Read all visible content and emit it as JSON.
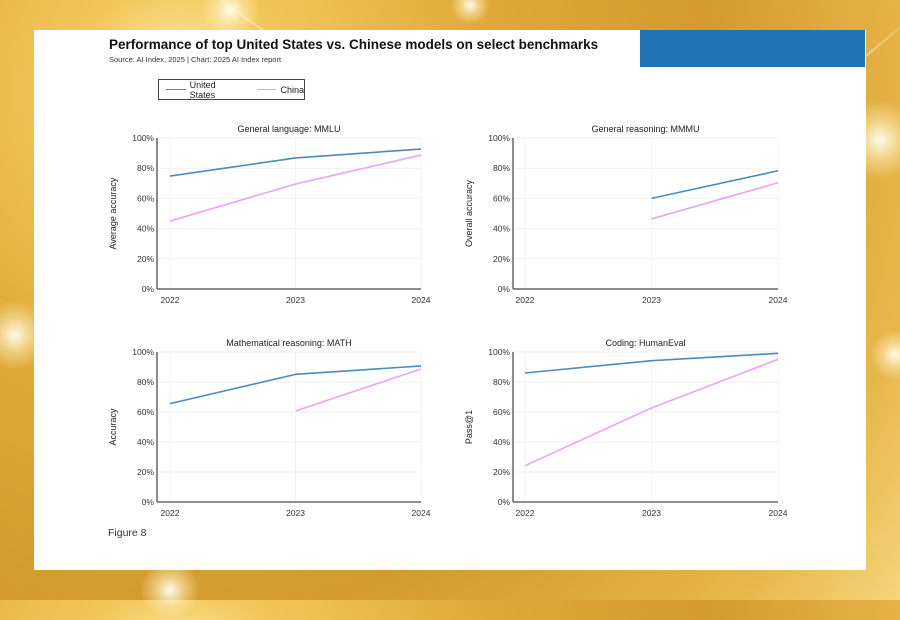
{
  "header": {
    "title": "Performance of top United States vs. Chinese models on select benchmarks",
    "source": "Source: AI Index, 2025 | Chart: 2025 AI Index report"
  },
  "legend": [
    {
      "name": "United States",
      "color": "#4a8bbf"
    },
    {
      "name": "China",
      "color": "#e9a6ef"
    }
  ],
  "footer": {
    "figure_label": "Figure 8"
  },
  "chart_data": [
    {
      "type": "line",
      "title": "General language: MMLU",
      "xlabel": "",
      "ylabel": "Average accuracy",
      "x": [
        "2022",
        "2023",
        "2024"
      ],
      "ylim": [
        0,
        100
      ],
      "yticks": [
        "0%",
        "20%",
        "40%",
        "60%",
        "80%",
        "100%"
      ],
      "grid": true,
      "series": [
        {
          "name": "United States",
          "values": [
            74.8,
            86.8,
            92.7
          ]
        },
        {
          "name": "China",
          "values": [
            45.0,
            69.5,
            88.7
          ]
        }
      ]
    },
    {
      "type": "line",
      "title": "General reasoning: MMMU",
      "xlabel": "",
      "ylabel": "Overall accuracy",
      "x": [
        "2022",
        "2023",
        "2024"
      ],
      "ylim": [
        0,
        100
      ],
      "yticks": [
        "0%",
        "20%",
        "40%",
        "60%",
        "80%",
        "100%"
      ],
      "grid": true,
      "series": [
        {
          "name": "United States",
          "values": [
            null,
            60.0,
            78.3
          ]
        },
        {
          "name": "China",
          "values": [
            null,
            46.4,
            70.4
          ]
        }
      ]
    },
    {
      "type": "line",
      "title": "Mathematical reasoning: MATH",
      "xlabel": "",
      "ylabel": "Accuracy",
      "x": [
        "2022",
        "2023",
        "2024"
      ],
      "ylim": [
        0,
        100
      ],
      "yticks": [
        "0%",
        "20%",
        "40%",
        "60%",
        "80%",
        "100%"
      ],
      "grid": true,
      "series": [
        {
          "name": "United States",
          "values": [
            65.6,
            85.1,
            90.7
          ]
        },
        {
          "name": "China",
          "values": [
            null,
            60.7,
            88.7
          ]
        }
      ]
    },
    {
      "type": "line",
      "title": "Coding: HumanEval",
      "xlabel": "",
      "ylabel": "Pass@1",
      "x": [
        "2022",
        "2023",
        "2024"
      ],
      "ylim": [
        0,
        100
      ],
      "yticks": [
        "0%",
        "20%",
        "40%",
        "60%",
        "80%",
        "100%"
      ],
      "grid": true,
      "series": [
        {
          "name": "United States",
          "values": [
            86.0,
            94.2,
            99.1
          ]
        },
        {
          "name": "China",
          "values": [
            24.2,
            62.7,
            95.1
          ]
        }
      ]
    }
  ]
}
